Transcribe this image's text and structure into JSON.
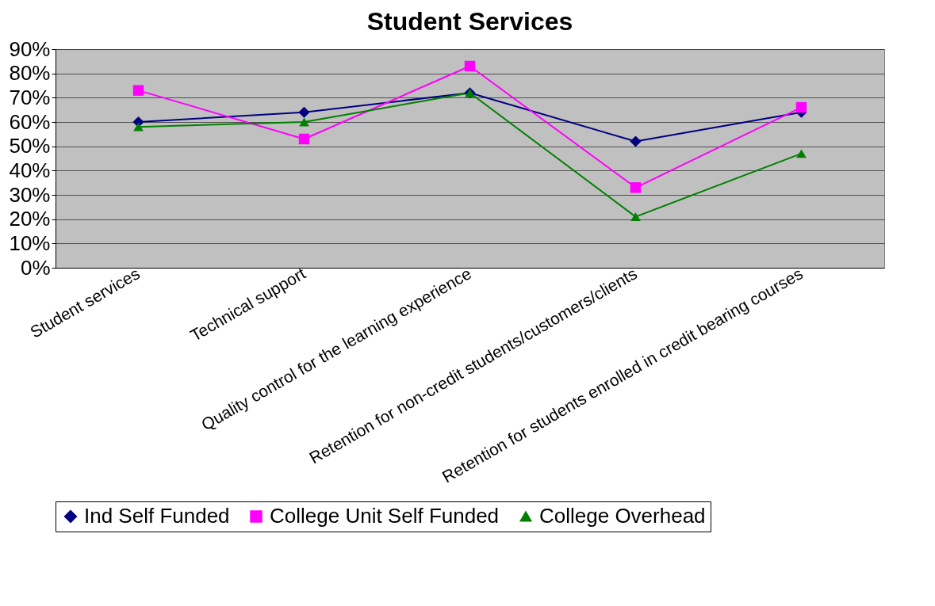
{
  "chart_data": {
    "type": "line",
    "title": "Student Services",
    "categories": [
      "Student services",
      "Technical support",
      "Quality control for the learning experience",
      "Retention for non-credit students/customers/clients",
      "Retention for students enrolled in credit bearing courses"
    ],
    "series": [
      {
        "name": "Ind Self Funded",
        "color": "#000080",
        "marker": "diamond",
        "values": [
          60,
          64,
          72,
          52,
          64
        ]
      },
      {
        "name": "College Unit Self Funded",
        "color": "#ff00ff",
        "marker": "square",
        "values": [
          73,
          53,
          83,
          33,
          66
        ]
      },
      {
        "name": "College Overhead",
        "color": "#008000",
        "marker": "triangle",
        "values": [
          58,
          60,
          72,
          21,
          47
        ]
      }
    ],
    "ylim": [
      0,
      90
    ],
    "yticks": [
      {
        "value": 0,
        "label": "0%"
      },
      {
        "value": 10,
        "label": "10%"
      },
      {
        "value": 20,
        "label": "20%"
      },
      {
        "value": 30,
        "label": "30%"
      },
      {
        "value": 40,
        "label": "40%"
      },
      {
        "value": 50,
        "label": "50%"
      },
      {
        "value": 60,
        "label": "60%"
      },
      {
        "value": 70,
        "label": "70%"
      },
      {
        "value": 80,
        "label": "80%"
      },
      {
        "value": 90,
        "label": "90%"
      }
    ],
    "grid": "y",
    "legend": "bottom",
    "line_style": "solid"
  }
}
